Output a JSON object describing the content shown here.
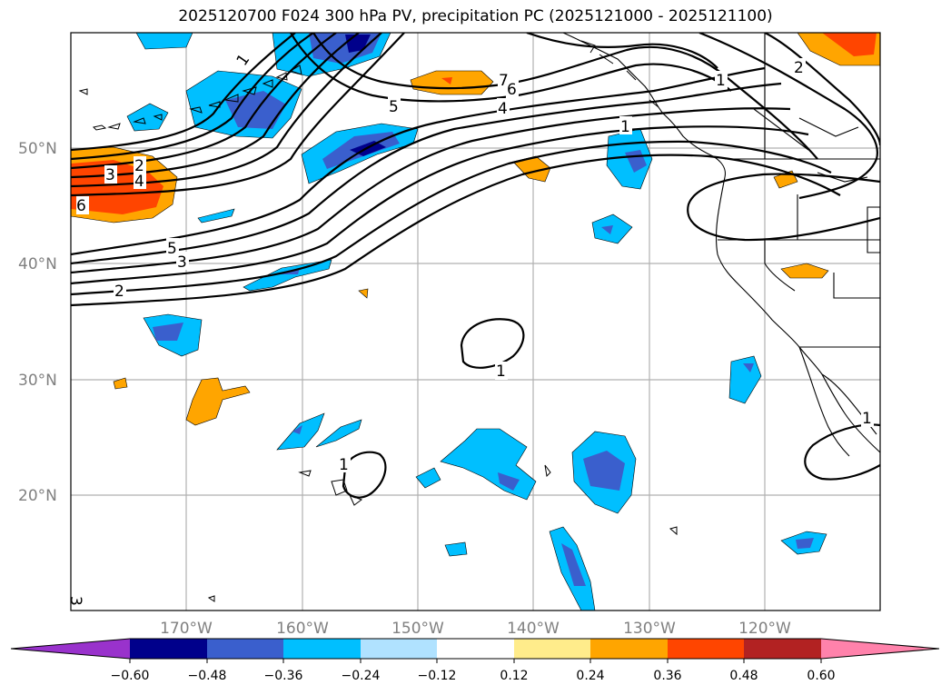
{
  "title": "2025120700 F024 300 hPa PV, precipitation PC (2025121000 - 2025121100)",
  "lat_labels": [
    "50°N",
    "40°N",
    "30°N",
    "20°N"
  ],
  "lon_labels": [
    "170°W",
    "160°W",
    "150°W",
    "140°W",
    "130°W",
    "120°W"
  ],
  "colorbar": {
    "ticks": [
      "−0.60",
      "−0.48",
      "−0.36",
      "−0.24",
      "−0.12",
      "0.12",
      "0.24",
      "0.36",
      "0.48",
      "0.60"
    ],
    "colors": [
      "#9932cc",
      "#00008b",
      "#3a5fcd",
      "#00bfff",
      "#b0e2ff",
      "#ffffff",
      "#ffec8b",
      "#ffa500",
      "#ff4500",
      "#b22222",
      "#ff82ab"
    ]
  },
  "contour_labels": {
    "c1a": "1",
    "c2a": "2",
    "c3a": "3",
    "c4a": "4",
    "c5a": "5",
    "c6a": "6",
    "c7a": "7",
    "c1b": "1",
    "c2b": "2",
    "c3b": "3",
    "c4b": "4",
    "c5b": "5",
    "c6b": "6",
    "c1c": "1",
    "c1d": "1",
    "c1e": "1",
    "c2c": "2",
    "c2d": "2",
    "c1f": "1"
  },
  "colors": {
    "light_blue": "#00bfff",
    "mid_blue": "#3a5fcd",
    "dark_blue": "#00008b",
    "orange": "#ffa500",
    "red_orange": "#ff4500"
  }
}
